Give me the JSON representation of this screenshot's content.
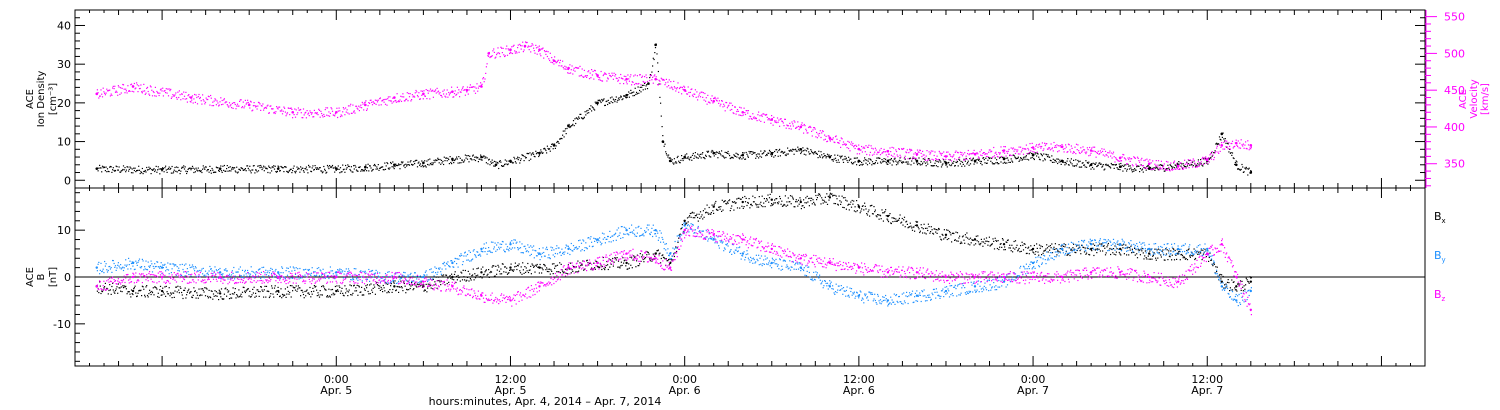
{
  "chart_data": [
    {
      "type": "scatter",
      "panel": "top",
      "left_axis": {
        "label_lines": [
          "ACE",
          "Ion Density",
          "[cm⁻³]"
        ],
        "ylim": [
          -2,
          44
        ],
        "ticks": [
          0,
          10,
          20,
          30,
          40
        ],
        "color": "#000000"
      },
      "right_axis": {
        "label_lines": [
          "ACE",
          "Velocity",
          "[km/s]"
        ],
        "ylim": [
          317,
          559
        ],
        "ticks": [
          350,
          400,
          450,
          500,
          550
        ],
        "color": "#ff00ff"
      },
      "series": [
        {
          "name": "Ion Density",
          "axis": "left",
          "color": "#000000",
          "t_hours": [
            -16.5,
            -12,
            -8,
            -4,
            0,
            2,
            4,
            6,
            8,
            10,
            11,
            12,
            14,
            15,
            16,
            18,
            20,
            21.5,
            22,
            22.5,
            23,
            24,
            26,
            28,
            30,
            32,
            34,
            36,
            38,
            40,
            42,
            44,
            46,
            48,
            50,
            52,
            54,
            56,
            58,
            60,
            61,
            62,
            63
          ],
          "values": [
            3,
            2.8,
            3,
            3,
            3,
            3.4,
            4,
            4.5,
            5.5,
            6,
            4,
            5,
            7,
            9,
            14,
            20,
            22,
            25,
            35,
            10,
            5,
            6,
            7,
            6.5,
            7,
            8,
            6,
            5,
            5,
            5,
            4.5,
            5,
            5.5,
            6.5,
            5,
            4,
            3.5,
            3,
            4,
            5,
            12,
            4,
            2
          ]
        },
        {
          "name": "Velocity",
          "axis": "right",
          "color": "#ff00ff",
          "t_hours": [
            -16.5,
            -14,
            -10,
            -6,
            -3,
            0,
            2,
            4,
            6,
            8,
            9,
            10,
            10.5,
            12,
            13,
            14,
            15,
            16,
            18,
            20,
            22,
            24,
            26,
            28,
            30,
            32,
            34,
            36,
            38,
            40,
            42,
            44,
            46,
            48,
            50,
            52,
            54,
            56,
            58,
            60,
            61,
            62,
            63
          ],
          "values": [
            445,
            455,
            440,
            430,
            420,
            420,
            430,
            440,
            445,
            448,
            450,
            455,
            500,
            505,
            510,
            505,
            490,
            480,
            470,
            465,
            465,
            450,
            435,
            420,
            410,
            400,
            385,
            370,
            367,
            363,
            360,
            363,
            368,
            372,
            373,
            368,
            358,
            350,
            347,
            355,
            375,
            378,
            375
          ]
        }
      ]
    },
    {
      "type": "scatter",
      "panel": "bottom",
      "left_axis": {
        "label_lines": [
          "ACE",
          "B",
          "[nT]"
        ],
        "ylim": [
          -19,
          19
        ],
        "ticks": [
          -10,
          0,
          10
        ]
      },
      "zero_line": true,
      "series": [
        {
          "name": "Bx",
          "label_main": "B",
          "label_sub": "x",
          "color": "#000000",
          "t_hours": [
            -16.5,
            -14,
            -12,
            -8,
            -4,
            0,
            4,
            6,
            8,
            10,
            12,
            14,
            16,
            18,
            20,
            22,
            23,
            24,
            26,
            28,
            30,
            32,
            34,
            36,
            38,
            40,
            42,
            44,
            46,
            48,
            50,
            52,
            54,
            56,
            58,
            60,
            61,
            62,
            63
          ],
          "values": [
            -2,
            -3,
            -3,
            -3.5,
            -3,
            -3,
            -2,
            -2,
            0,
            1,
            2,
            2,
            2,
            3,
            3,
            5,
            3,
            12,
            15,
            16,
            16.5,
            16,
            17,
            15,
            13,
            11,
            9,
            8,
            7,
            6,
            6,
            6,
            6,
            5,
            5,
            5,
            -1,
            -2,
            -1
          ]
        },
        {
          "name": "By",
          "label_main": "B",
          "label_sub": "y",
          "color": "#1e90ff",
          "t_hours": [
            -16.5,
            -14,
            -12,
            -8,
            -4,
            0,
            4,
            6,
            8,
            10,
            12,
            14,
            16,
            18,
            20,
            22,
            23,
            24,
            26,
            28,
            30,
            32,
            34,
            36,
            38,
            40,
            42,
            44,
            46,
            48,
            50,
            52,
            54,
            56,
            58,
            60,
            61,
            62,
            63
          ],
          "values": [
            2,
            3,
            2,
            1,
            1,
            1,
            0,
            0,
            3,
            6,
            7,
            5,
            6,
            8,
            10,
            10,
            5,
            11,
            8,
            5,
            3,
            2,
            -2,
            -4,
            -5,
            -4,
            -3,
            -2,
            -1,
            3,
            6,
            7,
            7,
            6,
            6,
            6,
            -2,
            -5,
            -3
          ]
        },
        {
          "name": "Bz",
          "label_main": "B",
          "label_sub": "z",
          "color": "#ff00ff",
          "t_hours": [
            -16.5,
            -14,
            -12,
            -8,
            -4,
            0,
            4,
            6,
            8,
            10,
            12,
            14,
            16,
            18,
            20,
            22,
            23,
            24,
            26,
            28,
            30,
            32,
            34,
            36,
            38,
            40,
            42,
            44,
            46,
            48,
            50,
            52,
            54,
            56,
            58,
            60,
            61,
            62,
            63
          ],
          "values": [
            -2,
            0,
            0,
            0,
            0,
            0,
            0,
            -1,
            -2,
            -4,
            -5,
            -2,
            2,
            3,
            5,
            4,
            2,
            10,
            9,
            8,
            6,
            4,
            3,
            2,
            1,
            1,
            0,
            0,
            0,
            0,
            0,
            1,
            1,
            0,
            -1,
            5,
            7,
            0,
            -7
          ]
        }
      ]
    }
  ],
  "x_axis": {
    "xlim_hours": [
      -18,
      75
    ],
    "tick_hours": [
      0,
      12,
      24,
      36,
      48,
      60
    ],
    "tick_labels_time": [
      "0:00",
      "12:00",
      "0:00",
      "12:00",
      "0:00",
      "12:00"
    ],
    "tick_labels_date": [
      "Apr. 5",
      "Apr. 5",
      "Apr. 6",
      "Apr. 6",
      "Apr. 7",
      "Apr. 7"
    ],
    "title": "hours:minutes, Apr.  4, 2014 – Apr.  7, 2014"
  }
}
